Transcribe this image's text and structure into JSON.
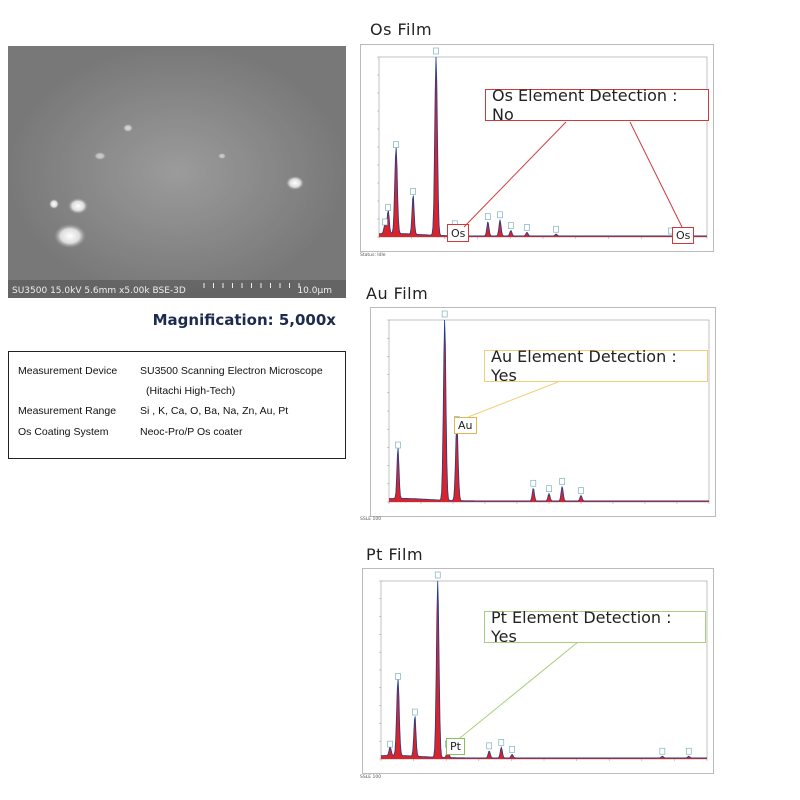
{
  "sem": {
    "caption_left": "SU3500 15.0kV 5.6mm x5.00k BSE-3D",
    "caption_right": "10.0µm"
  },
  "magnification": "Magnification: 5,000x",
  "spec": [
    {
      "label": "Measurement Device",
      "value": "SU3500 Scanning Electron Microscope"
    },
    {
      "label": "",
      "value": "(Hitachi High-Tech)"
    },
    {
      "label": "Measurement Range",
      "value": "Si , K, Ca, O, Ba, Na, Zn, Au, Pt"
    },
    {
      "label": "Os Coating System",
      "value": "Neoc-Pro/P Os coater"
    }
  ],
  "colors": {
    "spectrum_fill": "#d9232b",
    "spectrum_line": "#1f3c8a",
    "os_accent": "#d03a3a",
    "au_accent": "#f2cf7c",
    "pt_accent": "#a7cf7d",
    "title_navy": "#1d2b4f"
  },
  "chart_data": [
    {
      "type": "area",
      "title": "Os Film",
      "callout": "Os Element Detection : No",
      "marker_label": "Os",
      "xlim": [
        0,
        10
      ],
      "ylim": [
        0,
        100
      ],
      "status": "Status: Idle",
      "series": [
        {
          "values": [
            [
              0.18,
              5
            ],
            [
              0.28,
              13
            ],
            [
              0.52,
              48
            ],
            [
              1.04,
              22
            ],
            [
              1.74,
              100
            ],
            [
              2.31,
              4
            ],
            [
              3.32,
              8
            ],
            [
              3.69,
              9
            ],
            [
              4.02,
              3
            ],
            [
              4.51,
              2
            ],
            [
              5.4,
              1
            ],
            [
              8.9,
              0
            ]
          ]
        }
      ]
    },
    {
      "type": "area",
      "title": "Au Film",
      "callout": "Au Element Detection : Yes",
      "marker_label": "Au",
      "xlim": [
        0,
        10
      ],
      "ylim": [
        0,
        100
      ],
      "status": "SSLE 100",
      "series": [
        {
          "values": [
            [
              0.28,
              28
            ],
            [
              1.74,
              100
            ],
            [
              2.12,
              42
            ],
            [
              4.51,
              7
            ],
            [
              5.0,
              4
            ],
            [
              5.41,
              8
            ],
            [
              6.0,
              3
            ]
          ]
        }
      ]
    },
    {
      "type": "area",
      "title": "Pt Film",
      "callout": "Pt Element Detection : Yes",
      "marker_label": "Pt",
      "xlim": [
        0,
        10
      ],
      "ylim": [
        0,
        100
      ],
      "status": "SSLE 100",
      "series": [
        {
          "values": [
            [
              0.28,
              5
            ],
            [
              0.52,
              43
            ],
            [
              1.04,
              23
            ],
            [
              1.74,
              100
            ],
            [
              2.05,
              5
            ],
            [
              3.32,
              4
            ],
            [
              3.69,
              6
            ],
            [
              4.02,
              2
            ],
            [
              8.63,
              1
            ],
            [
              9.44,
              1
            ]
          ]
        }
      ]
    }
  ]
}
